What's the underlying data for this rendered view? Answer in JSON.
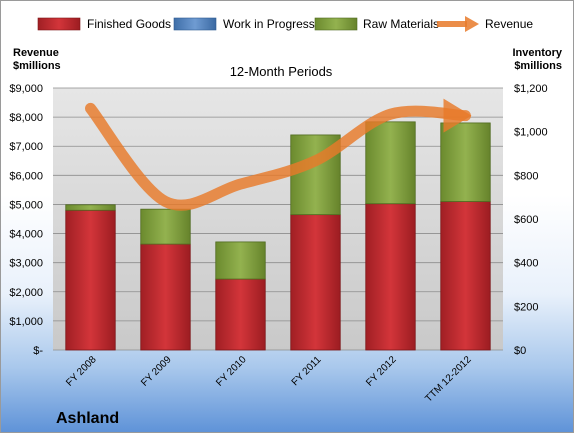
{
  "company_name": "Ashland",
  "chart_data": {
    "type": "bar",
    "stacked": true,
    "title": "12-Month Periods",
    "ylabel_left": "Revenue\n$millions",
    "ylabel_right": "Inventory\n$millions",
    "categories": [
      "FY 2008",
      "FY 2009",
      "FY 2010",
      "FY 2011",
      "FY 2012",
      "TTM 12-2012"
    ],
    "series": [
      {
        "name": "Finished Goods",
        "type": "bar",
        "axis": "right",
        "color": "#c0282e",
        "values": [
          640,
          485,
          325,
          620,
          670,
          680
        ]
      },
      {
        "name": "Work in Progress",
        "type": "bar",
        "axis": "right",
        "color": "#4f81bd",
        "values": [
          0,
          0,
          0,
          0,
          0,
          0
        ]
      },
      {
        "name": "Raw Materials",
        "type": "bar",
        "axis": "right",
        "color": "#7a9a3a",
        "values": [
          25,
          160,
          170,
          365,
          375,
          360
        ]
      },
      {
        "name": "Revenue",
        "type": "line",
        "axis": "left",
        "color": "#e87a2a",
        "values": [
          8300,
          5100,
          5700,
          6500,
          8100,
          8050
        ]
      }
    ],
    "left_axis": {
      "min": 0,
      "max": 9000,
      "ticks": [
        0,
        1000,
        2000,
        3000,
        4000,
        5000,
        6000,
        7000,
        8000,
        9000
      ],
      "tick_labels": [
        "$-",
        "$1,000",
        "$2,000",
        "$3,000",
        "$4,000",
        "$5,000",
        "$6,000",
        "$7,000",
        "$8,000",
        "$9,000"
      ]
    },
    "right_axis": {
      "min": 0,
      "max": 1200,
      "ticks": [
        0,
        200,
        400,
        600,
        800,
        1000,
        1200
      ],
      "tick_labels": [
        "$0",
        "$200",
        "$400",
        "$600",
        "$800",
        "$1,000",
        "$1,200"
      ]
    },
    "grid": true,
    "legend_position": "top"
  }
}
